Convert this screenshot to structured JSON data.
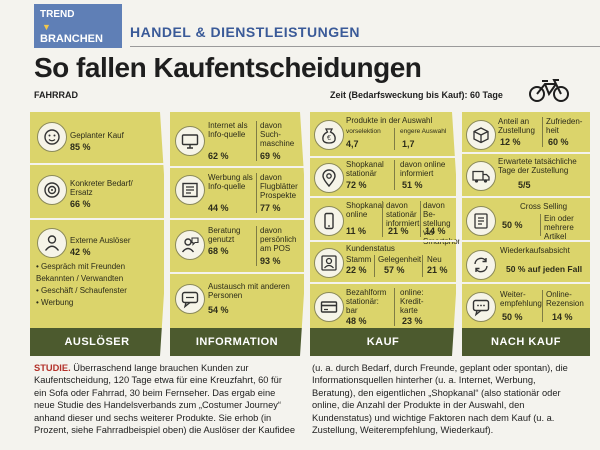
{
  "header": {
    "trend": "TREND",
    "branchen": "BRANCHEN",
    "section": "HANDEL & DIENSTLEISTUNGEN"
  },
  "title": "So fallen Kaufentscheidungen",
  "subtitle": "FAHRRAD",
  "time_note": "Zeit (Bedarfsweckung bis Kauf): 60 Tage",
  "columns": {
    "ausloeser": {
      "footer": "AUSLÖSER",
      "items": [
        {
          "label": "Geplanter Kauf",
          "value": "85 %"
        },
        {
          "label": "Konkreter Bedarf/ Ersatz",
          "value": "66 %"
        },
        {
          "label": "Externe Auslöser",
          "value": "42 %"
        }
      ],
      "bullets": [
        "Gespräch mit Freunden Bekannten / Verwandten",
        "Geschäft / Schaufenster",
        "Werbung"
      ]
    },
    "information": {
      "footer": "INFORMATION",
      "rows": [
        {
          "label": "Internet als Info-quelle",
          "value": "62 %",
          "sub_label": "davon Such-maschine",
          "sub_value": "69 %"
        },
        {
          "label": "Werbung als Info-quelle",
          "value": "44 %",
          "sub_label": "davon Flugblätter Prospekte",
          "sub_value": "77 %"
        },
        {
          "label": "Beratung genutzt",
          "value": "68 %",
          "sub_label": "davon persönlich am POS",
          "sub_value": "93 %"
        },
        {
          "label": "Austausch mit anderen Personen",
          "value": "54 %"
        }
      ]
    },
    "kauf": {
      "footer": "KAUF",
      "auswahl": {
        "title": "Produkte in der Auswahl",
        "l1": "vorselektion",
        "v1": "4,7",
        "l2": "engere Auswahl",
        "v2": "1,7"
      },
      "shopkanal": {
        "l1": "Shopkanal stationär",
        "v1": "72 %",
        "l2": "davon online informiert",
        "v2": "51 %"
      },
      "online": {
        "l1": "Shopkanal online",
        "v1": "11 %",
        "l2": "davon stationär informiert",
        "v2": "21 %",
        "l3": "davon Be-stellung via Smartphone",
        "v3": "14 %"
      },
      "kundenstatus": {
        "title": "Kundenstatus",
        "l1": "Stamm",
        "v1": "22 %",
        "l2": "Gelegenheit",
        "v2": "57 %",
        "l3": "Neu",
        "v3": "21 %"
      },
      "bezahlform": {
        "l1": "Bezahlform stationär: bar",
        "v1": "48 %",
        "l2": "online: Kredit-karte",
        "v2": "23 %"
      }
    },
    "nach_kauf": {
      "footer": "NACH KAUF",
      "zustellung": {
        "l1": "Anteil an Zustellung",
        "v1": "12 %",
        "l2": "Zufrieden-heit",
        "v2": "60 %"
      },
      "tage": {
        "label": "Erwartete tatsächliche Tage der Zustellung",
        "value": "5/5"
      },
      "cross": {
        "label": "Cross Selling",
        "v1": "50 %",
        "l2": "Ein oder mehrere Artikel"
      },
      "wieder": {
        "label": "Wiederkaufsabsicht",
        "value": "50 % auf jeden Fall"
      },
      "weiter": {
        "l1": "Weiter-empfehlung",
        "v1": "50 %",
        "l2": "Online-Rezension",
        "v2": "14 %"
      }
    }
  },
  "body": {
    "label": "STUDIE.",
    "text": "Überraschend lange brauchen Kunden zur Kaufentscheidung, 120 Tage etwa für eine Kreuzfahrt, 60 für ein Sofa oder Fahrrad, 30 beim Fernseher. Das ergab eine neue Studie des Handelsverbands zum „Costumer Journey“ anhand dieser und sechs weiterer Produkte. Sie erhob (in Prozent, siehe Fahrradbeispiel oben) die Auslöser der Kaufidee (u. a. durch Bedarf, durch Freunde, geplant oder spontan), die Informationsquellen hinterher (u. a. Internet, Werbung, Beratung), den eigentlichen „Shopkanal“ (also stationär oder online, die Anzahl der Produkte in der Auswahl, den Kundenstatus) und wichtige Faktoren nach dem Kauf (u. a. Zustellung, Weiterempfehlung, Wiederkauf)."
  },
  "colors": {
    "accent_blue": "#3a5a98",
    "panel": "#dbd46b",
    "footer": "#4c5a2e",
    "studie": "#b3312a"
  }
}
